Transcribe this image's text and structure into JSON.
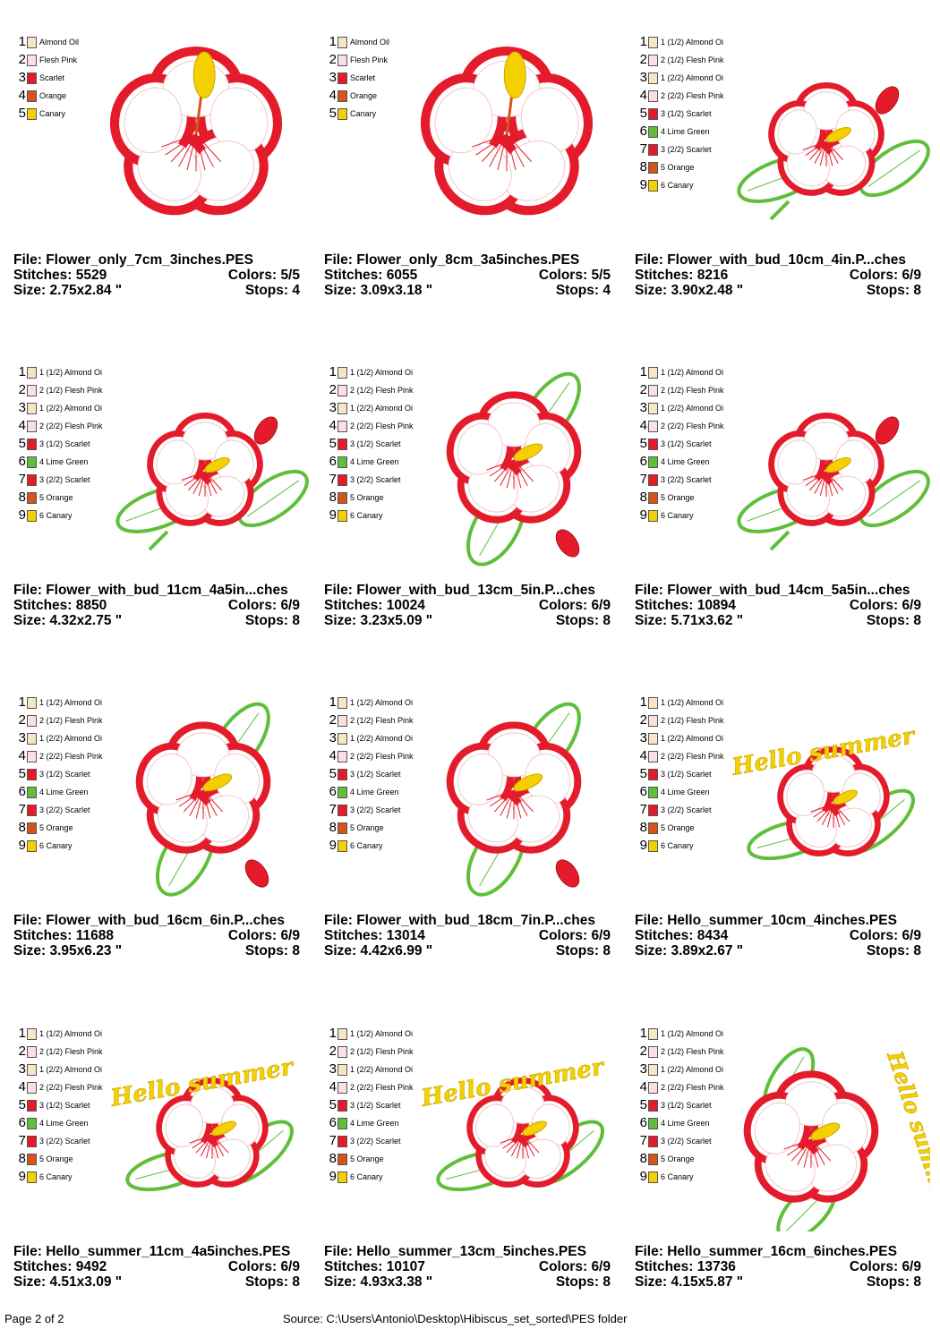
{
  "labels": {
    "file": "File:",
    "stitches": "Stitches:",
    "colors": "Colors:",
    "size": "Size:",
    "stops": "Stops:"
  },
  "palette": {
    "Almond Oil": "#f5e6c4",
    "Flesh Pink": "#fbe0e3",
    "Scarlet": "#e41b2a",
    "Orange": "#d4541a",
    "Canary": "#f5d000",
    "Lime Green": "#5fbf3a"
  },
  "designs": [
    {
      "file": "Flower_only_7cm_3inches.PES",
      "stitches": "5529",
      "colors": "5/5",
      "size": "2.75x2.84 \"",
      "stops": "4",
      "variant": "flower",
      "colorlist": [
        {
          "n": "1",
          "name": "Almond Oil",
          "swatch": "Almond Oil"
        },
        {
          "n": "2",
          "name": "Flesh Pink",
          "swatch": "Flesh Pink"
        },
        {
          "n": "3",
          "name": "Scarlet",
          "swatch": "Scarlet"
        },
        {
          "n": "4",
          "name": "Orange",
          "swatch": "Orange"
        },
        {
          "n": "5",
          "name": "Canary",
          "swatch": "Canary"
        }
      ]
    },
    {
      "file": "Flower_only_8cm_3a5inches.PES",
      "stitches": "6055",
      "colors": "5/5",
      "size": "3.09x3.18 \"",
      "stops": "4",
      "variant": "flower",
      "colorlist": [
        {
          "n": "1",
          "name": "Almond Oil",
          "swatch": "Almond Oil"
        },
        {
          "n": "2",
          "name": "Flesh Pink",
          "swatch": "Flesh Pink"
        },
        {
          "n": "3",
          "name": "Scarlet",
          "swatch": "Scarlet"
        },
        {
          "n": "4",
          "name": "Orange",
          "swatch": "Orange"
        },
        {
          "n": "5",
          "name": "Canary",
          "swatch": "Canary"
        }
      ]
    },
    {
      "file": "Flower_with_bud_10cm_4in.P...ches",
      "stitches": "8216",
      "colors": "6/9",
      "size": "3.90x2.48 \"",
      "stops": "8",
      "variant": "bud-wide",
      "colorlist": [
        {
          "n": "1",
          "name": "1 (1/2) Almond Oi",
          "swatch": "Almond Oil"
        },
        {
          "n": "2",
          "name": "2 (1/2) Flesh Pink",
          "swatch": "Flesh Pink"
        },
        {
          "n": "3",
          "name": "1 (2/2) Almond Oi",
          "swatch": "Almond Oil"
        },
        {
          "n": "4",
          "name": "2 (2/2) Flesh Pink",
          "swatch": "Flesh Pink"
        },
        {
          "n": "5",
          "name": "3 (1/2) Scarlet",
          "swatch": "Scarlet"
        },
        {
          "n": "6",
          "name": "4 Lime Green",
          "swatch": "Lime Green"
        },
        {
          "n": "7",
          "name": "3 (2/2) Scarlet",
          "swatch": "Scarlet"
        },
        {
          "n": "8",
          "name": "5 Orange",
          "swatch": "Orange"
        },
        {
          "n": "9",
          "name": "6 Canary",
          "swatch": "Canary"
        }
      ]
    },
    {
      "file": "Flower_with_bud_11cm_4a5in...ches",
      "stitches": "8850",
      "colors": "6/9",
      "size": "4.32x2.75 \"",
      "stops": "8",
      "variant": "bud-wide",
      "colorlist": [
        {
          "n": "1",
          "name": "1 (1/2) Almond Oi",
          "swatch": "Almond Oil"
        },
        {
          "n": "2",
          "name": "2 (1/2) Flesh Pink",
          "swatch": "Flesh Pink"
        },
        {
          "n": "3",
          "name": "1 (2/2) Almond Oi",
          "swatch": "Almond Oil"
        },
        {
          "n": "4",
          "name": "2 (2/2) Flesh Pink",
          "swatch": "Flesh Pink"
        },
        {
          "n": "5",
          "name": "3 (1/2) Scarlet",
          "swatch": "Scarlet"
        },
        {
          "n": "6",
          "name": "4 Lime Green",
          "swatch": "Lime Green"
        },
        {
          "n": "7",
          "name": "3 (2/2) Scarlet",
          "swatch": "Scarlet"
        },
        {
          "n": "8",
          "name": "5 Orange",
          "swatch": "Orange"
        },
        {
          "n": "9",
          "name": "6 Canary",
          "swatch": "Canary"
        }
      ]
    },
    {
      "file": "Flower_with_bud_13cm_5in.P...ches",
      "stitches": "10024",
      "colors": "6/9",
      "size": "3.23x5.09 \"",
      "stops": "8",
      "variant": "bud-tall",
      "colorlist": [
        {
          "n": "1",
          "name": "1 (1/2) Almond Oi",
          "swatch": "Almond Oil"
        },
        {
          "n": "2",
          "name": "2 (1/2) Flesh Pink",
          "swatch": "Flesh Pink"
        },
        {
          "n": "3",
          "name": "1 (2/2) Almond Oi",
          "swatch": "Almond Oil"
        },
        {
          "n": "4",
          "name": "2 (2/2) Flesh Pink",
          "swatch": "Flesh Pink"
        },
        {
          "n": "5",
          "name": "3 (1/2) Scarlet",
          "swatch": "Scarlet"
        },
        {
          "n": "6",
          "name": "4 Lime Green",
          "swatch": "Lime Green"
        },
        {
          "n": "7",
          "name": "3 (2/2) Scarlet",
          "swatch": "Scarlet"
        },
        {
          "n": "8",
          "name": "5 Orange",
          "swatch": "Orange"
        },
        {
          "n": "9",
          "name": "6 Canary",
          "swatch": "Canary"
        }
      ]
    },
    {
      "file": "Flower_with_bud_14cm_5a5in...ches",
      "stitches": "10894",
      "colors": "6/9",
      "size": "5.71x3.62 \"",
      "stops": "8",
      "variant": "bud-wide",
      "colorlist": [
        {
          "n": "1",
          "name": "1 (1/2) Almond Oi",
          "swatch": "Almond Oil"
        },
        {
          "n": "2",
          "name": "2 (1/2) Flesh Pink",
          "swatch": "Flesh Pink"
        },
        {
          "n": "3",
          "name": "1 (2/2) Almond Oi",
          "swatch": "Almond Oil"
        },
        {
          "n": "4",
          "name": "2 (2/2) Flesh Pink",
          "swatch": "Flesh Pink"
        },
        {
          "n": "5",
          "name": "3 (1/2) Scarlet",
          "swatch": "Scarlet"
        },
        {
          "n": "6",
          "name": "4 Lime Green",
          "swatch": "Lime Green"
        },
        {
          "n": "7",
          "name": "3 (2/2) Scarlet",
          "swatch": "Scarlet"
        },
        {
          "n": "8",
          "name": "5 Orange",
          "swatch": "Orange"
        },
        {
          "n": "9",
          "name": "6 Canary",
          "swatch": "Canary"
        }
      ]
    },
    {
      "file": "Flower_with_bud_16cm_6in.P...ches",
      "stitches": "11688",
      "colors": "6/9",
      "size": "3.95x6.23 \"",
      "stops": "8",
      "variant": "bud-tall",
      "colorlist": [
        {
          "n": "1",
          "name": "1 (1/2) Almond Oi",
          "swatch": "Almond Oil"
        },
        {
          "n": "2",
          "name": "2 (1/2) Flesh Pink",
          "swatch": "Flesh Pink"
        },
        {
          "n": "3",
          "name": "1 (2/2) Almond Oi",
          "swatch": "Almond Oil"
        },
        {
          "n": "4",
          "name": "2 (2/2) Flesh Pink",
          "swatch": "Flesh Pink"
        },
        {
          "n": "5",
          "name": "3 (1/2) Scarlet",
          "swatch": "Scarlet"
        },
        {
          "n": "6",
          "name": "4 Lime Green",
          "swatch": "Lime Green"
        },
        {
          "n": "7",
          "name": "3 (2/2) Scarlet",
          "swatch": "Scarlet"
        },
        {
          "n": "8",
          "name": "5 Orange",
          "swatch": "Orange"
        },
        {
          "n": "9",
          "name": "6 Canary",
          "swatch": "Canary"
        }
      ]
    },
    {
      "file": "Flower_with_bud_18cm_7in.P...ches",
      "stitches": "13014",
      "colors": "6/9",
      "size": "4.42x6.99 \"",
      "stops": "8",
      "variant": "bud-tall",
      "colorlist": [
        {
          "n": "1",
          "name": "1 (1/2) Almond Oi",
          "swatch": "Almond Oil"
        },
        {
          "n": "2",
          "name": "2 (1/2) Flesh Pink",
          "swatch": "Flesh Pink"
        },
        {
          "n": "3",
          "name": "1 (2/2) Almond Oi",
          "swatch": "Almond Oil"
        },
        {
          "n": "4",
          "name": "2 (2/2) Flesh Pink",
          "swatch": "Flesh Pink"
        },
        {
          "n": "5",
          "name": "3 (1/2) Scarlet",
          "swatch": "Scarlet"
        },
        {
          "n": "6",
          "name": "4 Lime Green",
          "swatch": "Lime Green"
        },
        {
          "n": "7",
          "name": "3 (2/2) Scarlet",
          "swatch": "Scarlet"
        },
        {
          "n": "8",
          "name": "5 Orange",
          "swatch": "Orange"
        },
        {
          "n": "9",
          "name": "6 Canary",
          "swatch": "Canary"
        }
      ]
    },
    {
      "file": "Hello_summer_10cm_4inches.PES",
      "stitches": "8434",
      "colors": "6/9",
      "size": "3.89x2.67 \"",
      "stops": "8",
      "variant": "hello-wide",
      "art_text": "Hello summer",
      "colorlist": [
        {
          "n": "1",
          "name": "1 (1/2) Almond Oi",
          "swatch": "Almond Oil"
        },
        {
          "n": "2",
          "name": "2 (1/2) Flesh Pink",
          "swatch": "Flesh Pink"
        },
        {
          "n": "3",
          "name": "1 (2/2) Almond Oi",
          "swatch": "Almond Oil"
        },
        {
          "n": "4",
          "name": "2 (2/2) Flesh Pink",
          "swatch": "Flesh Pink"
        },
        {
          "n": "5",
          "name": "3 (1/2) Scarlet",
          "swatch": "Scarlet"
        },
        {
          "n": "6",
          "name": "4 Lime Green",
          "swatch": "Lime Green"
        },
        {
          "n": "7",
          "name": "3 (2/2) Scarlet",
          "swatch": "Scarlet"
        },
        {
          "n": "8",
          "name": "5 Orange",
          "swatch": "Orange"
        },
        {
          "n": "9",
          "name": "6 Canary",
          "swatch": "Canary"
        }
      ]
    },
    {
      "file": "Hello_summer_11cm_4a5inches.PES",
      "stitches": "9492",
      "colors": "6/9",
      "size": "4.51x3.09 \"",
      "stops": "8",
      "variant": "hello-wide",
      "art_text": "Hello summer",
      "colorlist": [
        {
          "n": "1",
          "name": "1 (1/2) Almond Oi",
          "swatch": "Almond Oil"
        },
        {
          "n": "2",
          "name": "2 (1/2) Flesh Pink",
          "swatch": "Flesh Pink"
        },
        {
          "n": "3",
          "name": "1 (2/2) Almond Oi",
          "swatch": "Almond Oil"
        },
        {
          "n": "4",
          "name": "2 (2/2) Flesh Pink",
          "swatch": "Flesh Pink"
        },
        {
          "n": "5",
          "name": "3 (1/2) Scarlet",
          "swatch": "Scarlet"
        },
        {
          "n": "6",
          "name": "4 Lime Green",
          "swatch": "Lime Green"
        },
        {
          "n": "7",
          "name": "3 (2/2) Scarlet",
          "swatch": "Scarlet"
        },
        {
          "n": "8",
          "name": "5 Orange",
          "swatch": "Orange"
        },
        {
          "n": "9",
          "name": "6 Canary",
          "swatch": "Canary"
        }
      ]
    },
    {
      "file": "Hello_summer_13cm_5inches.PES",
      "stitches": "10107",
      "colors": "6/9",
      "size": "4.93x3.38 \"",
      "stops": "8",
      "variant": "hello-wide",
      "art_text": "Hello summer",
      "colorlist": [
        {
          "n": "1",
          "name": "1 (1/2) Almond Oi",
          "swatch": "Almond Oil"
        },
        {
          "n": "2",
          "name": "2 (1/2) Flesh Pink",
          "swatch": "Flesh Pink"
        },
        {
          "n": "3",
          "name": "1 (2/2) Almond Oi",
          "swatch": "Almond Oil"
        },
        {
          "n": "4",
          "name": "2 (2/2) Flesh Pink",
          "swatch": "Flesh Pink"
        },
        {
          "n": "5",
          "name": "3 (1/2) Scarlet",
          "swatch": "Scarlet"
        },
        {
          "n": "6",
          "name": "4 Lime Green",
          "swatch": "Lime Green"
        },
        {
          "n": "7",
          "name": "3 (2/2) Scarlet",
          "swatch": "Scarlet"
        },
        {
          "n": "8",
          "name": "5 Orange",
          "swatch": "Orange"
        },
        {
          "n": "9",
          "name": "6 Canary",
          "swatch": "Canary"
        }
      ]
    },
    {
      "file": "Hello_summer_16cm_6inches.PES",
      "stitches": "13736",
      "colors": "6/9",
      "size": "4.15x5.87 \"",
      "stops": "8",
      "variant": "hello-tall",
      "art_text": "Hello summer",
      "colorlist": [
        {
          "n": "1",
          "name": "1 (1/2) Almond Oi",
          "swatch": "Almond Oil"
        },
        {
          "n": "2",
          "name": "2 (1/2) Flesh Pink",
          "swatch": "Flesh Pink"
        },
        {
          "n": "3",
          "name": "1 (2/2) Almond Oi",
          "swatch": "Almond Oil"
        },
        {
          "n": "4",
          "name": "2 (2/2) Flesh Pink",
          "swatch": "Flesh Pink"
        },
        {
          "n": "5",
          "name": "3 (1/2) Scarlet",
          "swatch": "Scarlet"
        },
        {
          "n": "6",
          "name": "4 Lime Green",
          "swatch": "Lime Green"
        },
        {
          "n": "7",
          "name": "3 (2/2) Scarlet",
          "swatch": "Scarlet"
        },
        {
          "n": "8",
          "name": "5 Orange",
          "swatch": "Orange"
        },
        {
          "n": "9",
          "name": "6 Canary",
          "swatch": "Canary"
        }
      ]
    }
  ],
  "footer": {
    "page": "Page 2 of 2",
    "source": "Source: C:\\Users\\Antonio\\Desktop\\Hibiscus_set_sorted\\PES folder"
  }
}
